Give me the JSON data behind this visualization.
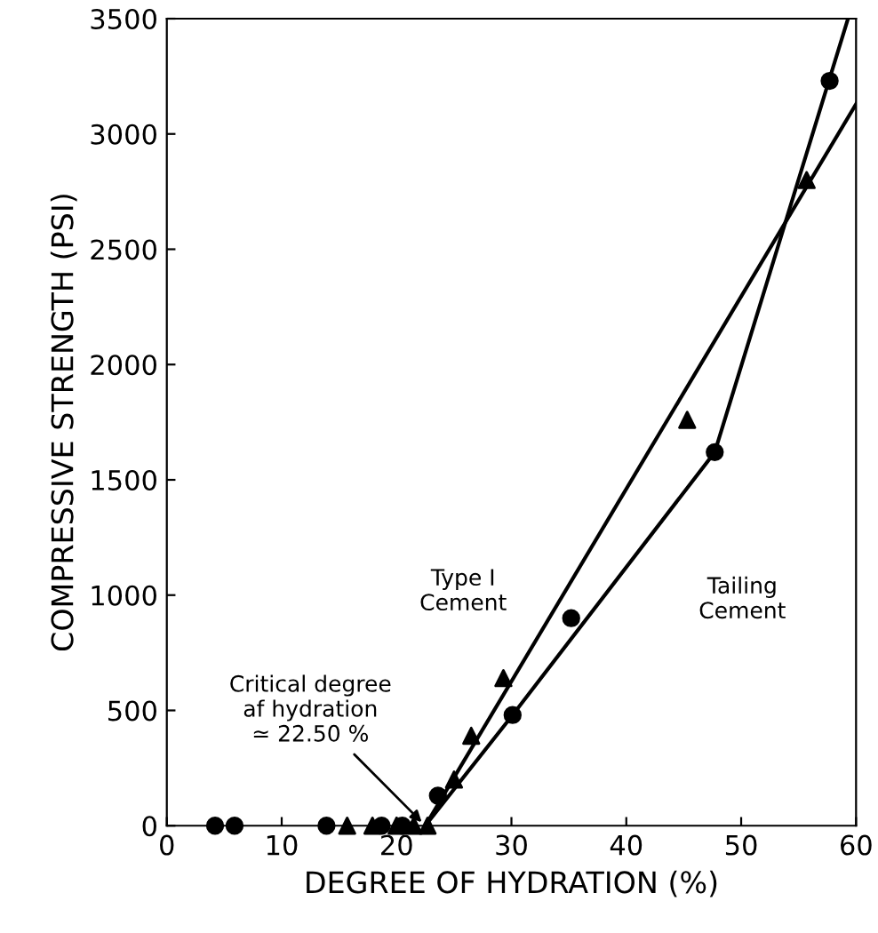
{
  "chart_data": {
    "type": "scatter",
    "xlabel": "DEGREE OF HYDRATION (%)",
    "ylabel": "COMPRESSIVE STRENGTH (PSI)",
    "xlim": [
      0,
      60
    ],
    "ylim": [
      0,
      3500
    ],
    "xticks": [
      0,
      10,
      20,
      30,
      40,
      50,
      60
    ],
    "yticks": [
      0,
      500,
      1000,
      1500,
      2000,
      2500,
      3000,
      3500
    ],
    "grid": false,
    "series": [
      {
        "marker": "circle",
        "color": "#000000",
        "x": [
          4.2,
          5.9,
          13.9,
          18.7,
          20.5,
          23.6,
          30.1,
          35.2,
          47.7,
          57.7
        ],
        "values": [
          0,
          0,
          0,
          0,
          0,
          130,
          480,
          900,
          1620,
          3230
        ]
      },
      {
        "marker": "triangle",
        "color": "#000000",
        "x": [
          15.7,
          17.9,
          20.0,
          21.5,
          22.7,
          25.0,
          26.5,
          29.3,
          45.3,
          55.7
        ],
        "values": [
          0,
          0,
          0,
          0,
          0,
          200,
          390,
          640,
          1760,
          2800
        ]
      },
      {
        "type": "line",
        "marker": "none",
        "color": "#000000",
        "x": [
          22.5,
          60
        ],
        "values": [
          0,
          3130
        ]
      },
      {
        "type": "line",
        "marker": "none",
        "color": "#000000",
        "x": [
          22.5,
          30.1,
          47.7,
          59.3
        ],
        "values": [
          0,
          480,
          1620,
          3500
        ]
      }
    ],
    "annotations": [
      "Type I\nCement",
      "Tailing\nCement",
      {
        "text": "Critical degree\naf hydration\n≃ 22.50 %",
        "x": 22.5,
        "y": 0
      }
    ]
  }
}
